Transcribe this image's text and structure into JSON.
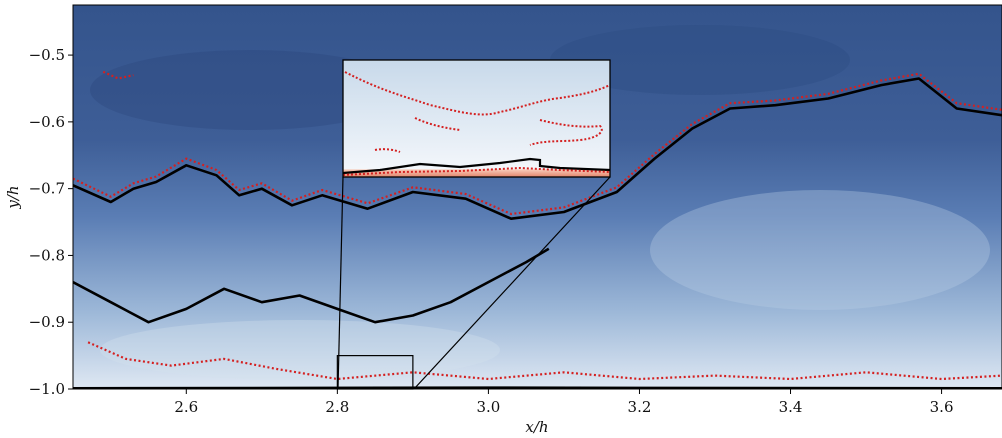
{
  "chart_data": {
    "type": "heatmap",
    "title": "",
    "xlabel": "x/h",
    "ylabel": "y/h",
    "xlim": [
      2.45,
      3.68
    ],
    "ylim": [
      -1.0,
      -0.425
    ],
    "x_ticks": [
      {
        "value": 2.6,
        "label": "2.6"
      },
      {
        "value": 2.8,
        "label": "2.8"
      },
      {
        "value": 3.0,
        "label": "3.0"
      },
      {
        "value": 3.2,
        "label": "3.2"
      },
      {
        "value": 3.4,
        "label": "3.4"
      },
      {
        "value": 3.6,
        "label": "3.6"
      }
    ],
    "y_ticks": [
      {
        "value": -0.5,
        "label": "−0.5"
      },
      {
        "value": -0.6,
        "label": "−0.6"
      },
      {
        "value": -0.7,
        "label": "−0.7"
      },
      {
        "value": -0.8,
        "label": "−0.8"
      },
      {
        "value": -0.9,
        "label": "−0.9"
      },
      {
        "value": -1.0,
        "label": "−1.0"
      }
    ],
    "grid": false,
    "colormap": [
      "#2f4f88",
      "#5b7fb8",
      "#9fbbdb",
      "#e8eef6"
    ],
    "contours": [
      {
        "style": "solid",
        "color": "#000000",
        "points": [
          [
            2.45,
            -0.695
          ],
          [
            2.5,
            -0.72
          ],
          [
            2.53,
            -0.7
          ],
          [
            2.56,
            -0.69
          ],
          [
            2.6,
            -0.665
          ],
          [
            2.64,
            -0.68
          ],
          [
            2.67,
            -0.71
          ],
          [
            2.7,
            -0.7
          ],
          [
            2.74,
            -0.725
          ],
          [
            2.78,
            -0.71
          ],
          [
            2.84,
            -0.73
          ],
          [
            2.9,
            -0.705
          ],
          [
            2.97,
            -0.715
          ],
          [
            3.03,
            -0.745
          ],
          [
            3.1,
            -0.735
          ],
          [
            3.17,
            -0.705
          ],
          [
            3.22,
            -0.655
          ],
          [
            3.27,
            -0.61
          ],
          [
            3.32,
            -0.58
          ],
          [
            3.38,
            -0.575
          ],
          [
            3.45,
            -0.565
          ],
          [
            3.52,
            -0.545
          ],
          [
            3.57,
            -0.535
          ],
          [
            3.62,
            -0.58
          ],
          [
            3.68,
            -0.59
          ]
        ]
      },
      {
        "style": "dotted",
        "color": "#d42020",
        "points": [
          [
            2.45,
            -0.685
          ],
          [
            2.5,
            -0.712
          ],
          [
            2.53,
            -0.692
          ],
          [
            2.56,
            -0.682
          ],
          [
            2.6,
            -0.655
          ],
          [
            2.64,
            -0.672
          ],
          [
            2.67,
            -0.702
          ],
          [
            2.7,
            -0.692
          ],
          [
            2.74,
            -0.718
          ],
          [
            2.78,
            -0.702
          ],
          [
            2.84,
            -0.722
          ],
          [
            2.9,
            -0.698
          ],
          [
            2.97,
            -0.708
          ],
          [
            3.03,
            -0.738
          ],
          [
            3.1,
            -0.728
          ],
          [
            3.17,
            -0.698
          ],
          [
            3.22,
            -0.648
          ],
          [
            3.27,
            -0.603
          ],
          [
            3.32,
            -0.572
          ],
          [
            3.38,
            -0.568
          ],
          [
            3.45,
            -0.558
          ],
          [
            3.52,
            -0.538
          ],
          [
            3.57,
            -0.528
          ],
          [
            3.62,
            -0.572
          ],
          [
            3.68,
            -0.582
          ]
        ]
      },
      {
        "style": "solid",
        "color": "#000000",
        "points": [
          [
            2.45,
            -0.84
          ],
          [
            2.5,
            -0.87
          ],
          [
            2.55,
            -0.9
          ],
          [
            2.6,
            -0.88
          ],
          [
            2.65,
            -0.85
          ],
          [
            2.7,
            -0.87
          ],
          [
            2.75,
            -0.86
          ],
          [
            2.8,
            -0.88
          ],
          [
            2.85,
            -0.9
          ],
          [
            2.9,
            -0.89
          ],
          [
            2.95,
            -0.87
          ],
          [
            3.0,
            -0.84
          ],
          [
            3.05,
            -0.81
          ],
          [
            3.08,
            -0.79
          ]
        ]
      },
      {
        "style": "dotted",
        "color": "#d42020",
        "points": [
          [
            2.47,
            -0.93
          ],
          [
            2.52,
            -0.955
          ],
          [
            2.58,
            -0.965
          ],
          [
            2.65,
            -0.955
          ],
          [
            2.72,
            -0.97
          ],
          [
            2.8,
            -0.985
          ],
          [
            2.9,
            -0.975
          ],
          [
            3.0,
            -0.985
          ],
          [
            3.1,
            -0.975
          ],
          [
            3.2,
            -0.985
          ],
          [
            3.3,
            -0.98
          ],
          [
            3.4,
            -0.985
          ],
          [
            3.5,
            -0.975
          ],
          [
            3.6,
            -0.985
          ],
          [
            3.68,
            -0.98
          ]
        ]
      },
      {
        "style": "dotted",
        "color": "#d42020",
        "points": [
          [
            2.49,
            -0.525
          ],
          [
            2.51,
            -0.535
          ],
          [
            2.53,
            -0.53
          ]
        ]
      },
      {
        "style": "solid",
        "color": "#000000",
        "points": [
          [
            2.45,
            -0.999
          ],
          [
            3.0,
            -0.998
          ],
          [
            3.68,
            -0.999
          ]
        ]
      }
    ],
    "annotations": [
      {
        "type": "rectangle",
        "x0": 2.8,
        "x1": 2.9,
        "y0": -1.0,
        "y1": -0.95
      },
      {
        "type": "inset",
        "content": "zoom of rectangle region"
      }
    ]
  }
}
